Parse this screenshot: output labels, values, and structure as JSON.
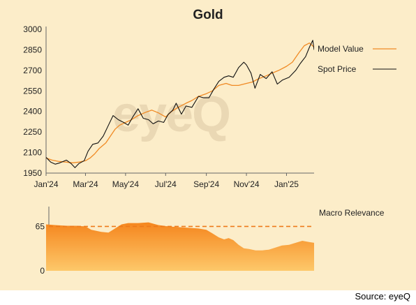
{
  "colors": {
    "background": "#fcedc9",
    "model_line": "#f08a24",
    "spot_line": "#111111",
    "macro_fill_top": "#f5861e",
    "macro_fill_bottom": "#fdc86a",
    "macro_ref_line": "#ee7a1a",
    "watermark": "#ead8b4"
  },
  "watermark_text": "eyeQ",
  "source_label": "Source: eyeQ",
  "chart_data": [
    {
      "type": "line",
      "title": "Gold",
      "xlabel": "",
      "ylabel": "",
      "ylim": [
        1950,
        3000
      ],
      "yticks": [
        1950,
        2100,
        2250,
        2400,
        2550,
        2700,
        2850,
        3000
      ],
      "xlim": [
        "2024-01-01",
        "2025-02-12"
      ],
      "xticks": [
        {
          "date": "2024-01-01",
          "label": "Jan'24"
        },
        {
          "date": "2024-03-01",
          "label": "Mar'24"
        },
        {
          "date": "2024-05-01",
          "label": "May'24"
        },
        {
          "date": "2024-07-01",
          "label": "Jul'24"
        },
        {
          "date": "2024-09-01",
          "label": "Sep'24"
        },
        {
          "date": "2024-11-01",
          "label": "Nov'24"
        },
        {
          "date": "2025-01-01",
          "label": "Jan'25"
        }
      ],
      "grid": false,
      "legend": "right",
      "series": [
        {
          "name": "Model Value",
          "points": [
            [
              "2024-01-01",
              2060
            ],
            [
              "2024-01-10",
              2045
            ],
            [
              "2024-01-20",
              2035
            ],
            [
              "2024-02-01",
              2030
            ],
            [
              "2024-02-10",
              2025
            ],
            [
              "2024-02-20",
              2030
            ],
            [
              "2024-03-01",
              2040
            ],
            [
              "2024-03-08",
              2060
            ],
            [
              "2024-03-15",
              2090
            ],
            [
              "2024-03-22",
              2130
            ],
            [
              "2024-04-01",
              2170
            ],
            [
              "2024-04-08",
              2220
            ],
            [
              "2024-04-15",
              2270
            ],
            [
              "2024-04-22",
              2300
            ],
            [
              "2024-05-01",
              2320
            ],
            [
              "2024-05-10",
              2340
            ],
            [
              "2024-05-20",
              2370
            ],
            [
              "2024-06-01",
              2395
            ],
            [
              "2024-06-10",
              2410
            ],
            [
              "2024-06-20",
              2390
            ],
            [
              "2024-07-01",
              2360
            ],
            [
              "2024-07-10",
              2400
            ],
            [
              "2024-07-20",
              2430
            ],
            [
              "2024-08-01",
              2460
            ],
            [
              "2024-08-10",
              2480
            ],
            [
              "2024-08-20",
              2510
            ],
            [
              "2024-09-01",
              2530
            ],
            [
              "2024-09-10",
              2550
            ],
            [
              "2024-09-20",
              2590
            ],
            [
              "2024-10-01",
              2605
            ],
            [
              "2024-10-10",
              2590
            ],
            [
              "2024-10-20",
              2590
            ],
            [
              "2024-11-01",
              2605
            ],
            [
              "2024-11-10",
              2615
            ],
            [
              "2024-11-20",
              2640
            ],
            [
              "2024-12-01",
              2660
            ],
            [
              "2024-12-10",
              2680
            ],
            [
              "2024-12-20",
              2700
            ],
            [
              "2025-01-01",
              2730
            ],
            [
              "2025-01-10",
              2760
            ],
            [
              "2025-01-20",
              2830
            ],
            [
              "2025-01-28",
              2880
            ],
            [
              "2025-02-05",
              2900
            ],
            [
              "2025-02-12",
              2870
            ]
          ]
        },
        {
          "name": "Spot Price",
          "points": [
            [
              "2024-01-01",
              2065
            ],
            [
              "2024-01-08",
              2030
            ],
            [
              "2024-01-15",
              2015
            ],
            [
              "2024-01-22",
              2025
            ],
            [
              "2024-02-01",
              2045
            ],
            [
              "2024-02-08",
              2020
            ],
            [
              "2024-02-14",
              1990
            ],
            [
              "2024-02-20",
              2020
            ],
            [
              "2024-02-28",
              2040
            ],
            [
              "2024-03-05",
              2110
            ],
            [
              "2024-03-12",
              2160
            ],
            [
              "2024-03-20",
              2170
            ],
            [
              "2024-03-28",
              2220
            ],
            [
              "2024-04-05",
              2300
            ],
            [
              "2024-04-12",
              2370
            ],
            [
              "2024-04-20",
              2340
            ],
            [
              "2024-04-28",
              2320
            ],
            [
              "2024-05-05",
              2300
            ],
            [
              "2024-05-12",
              2360
            ],
            [
              "2024-05-20",
              2420
            ],
            [
              "2024-05-28",
              2350
            ],
            [
              "2024-06-05",
              2340
            ],
            [
              "2024-06-12",
              2310
            ],
            [
              "2024-06-20",
              2330
            ],
            [
              "2024-06-28",
              2320
            ],
            [
              "2024-07-05",
              2380
            ],
            [
              "2024-07-12",
              2410
            ],
            [
              "2024-07-17",
              2460
            ],
            [
              "2024-07-25",
              2380
            ],
            [
              "2024-08-01",
              2440
            ],
            [
              "2024-08-10",
              2430
            ],
            [
              "2024-08-20",
              2510
            ],
            [
              "2024-08-28",
              2500
            ],
            [
              "2024-09-05",
              2500
            ],
            [
              "2024-09-12",
              2560
            ],
            [
              "2024-09-20",
              2620
            ],
            [
              "2024-09-28",
              2650
            ],
            [
              "2024-10-05",
              2660
            ],
            [
              "2024-10-12",
              2650
            ],
            [
              "2024-10-20",
              2720
            ],
            [
              "2024-10-28",
              2760
            ],
            [
              "2024-11-01",
              2740
            ],
            [
              "2024-11-08",
              2680
            ],
            [
              "2024-11-14",
              2570
            ],
            [
              "2024-11-22",
              2670
            ],
            [
              "2024-12-01",
              2640
            ],
            [
              "2024-12-10",
              2690
            ],
            [
              "2024-12-18",
              2600
            ],
            [
              "2024-12-26",
              2630
            ],
            [
              "2025-01-05",
              2650
            ],
            [
              "2025-01-15",
              2700
            ],
            [
              "2025-01-22",
              2750
            ],
            [
              "2025-01-30",
              2800
            ],
            [
              "2025-02-05",
              2870
            ],
            [
              "2025-02-10",
              2920
            ],
            [
              "2025-02-12",
              2850
            ]
          ]
        }
      ]
    },
    {
      "type": "area",
      "title": "Macro Relevance",
      "ylim": [
        0,
        90
      ],
      "yticks": [
        0,
        65
      ],
      "reference_line": 65,
      "xlim": [
        "2024-01-01",
        "2025-02-12"
      ],
      "points": [
        [
          "2024-01-01",
          68
        ],
        [
          "2024-01-15",
          67
        ],
        [
          "2024-02-01",
          66
        ],
        [
          "2024-02-15",
          66
        ],
        [
          "2024-03-01",
          65
        ],
        [
          "2024-03-10",
          60
        ],
        [
          "2024-03-25",
          57
        ],
        [
          "2024-04-05",
          56
        ],
        [
          "2024-04-15",
          62
        ],
        [
          "2024-04-25",
          68
        ],
        [
          "2024-05-05",
          70
        ],
        [
          "2024-05-20",
          70
        ],
        [
          "2024-06-05",
          71
        ],
        [
          "2024-06-20",
          67
        ],
        [
          "2024-07-05",
          65
        ],
        [
          "2024-07-20",
          64
        ],
        [
          "2024-08-05",
          63
        ],
        [
          "2024-08-20",
          62
        ],
        [
          "2024-09-01",
          60
        ],
        [
          "2024-09-10",
          55
        ],
        [
          "2024-09-20",
          49
        ],
        [
          "2024-09-28",
          46
        ],
        [
          "2024-10-05",
          48
        ],
        [
          "2024-10-12",
          45
        ],
        [
          "2024-10-20",
          38
        ],
        [
          "2024-10-28",
          33
        ],
        [
          "2024-11-05",
          32
        ],
        [
          "2024-11-15",
          30
        ],
        [
          "2024-11-25",
          30
        ],
        [
          "2024-12-05",
          31
        ],
        [
          "2024-12-15",
          34
        ],
        [
          "2024-12-25",
          37
        ],
        [
          "2025-01-05",
          38
        ],
        [
          "2025-01-15",
          41
        ],
        [
          "2025-01-25",
          44
        ],
        [
          "2025-02-05",
          42
        ],
        [
          "2025-02-12",
          41
        ]
      ]
    }
  ]
}
